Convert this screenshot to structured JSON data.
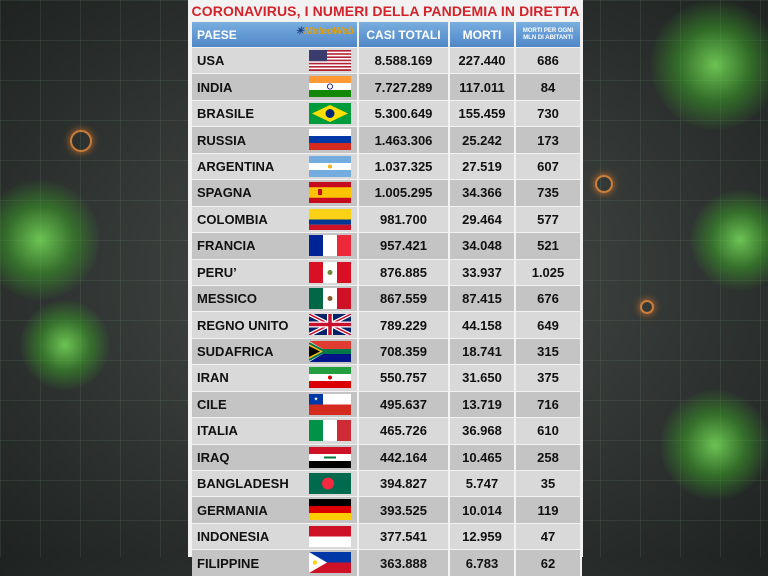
{
  "title": "CORONAVIRUS, I NUMERI DELLA PANDEMIA IN DIRETTA",
  "logo": "MeteoWeb",
  "columns": [
    "PAESE",
    "CASI TOTALI",
    "MORTI",
    "MORTI PER OGNI MLN DI ABITANTI"
  ],
  "rows": [
    {
      "country": "USA",
      "flag": "usa",
      "cases": "8.588.169",
      "deaths": "227.440",
      "rate": "686"
    },
    {
      "country": "INDIA",
      "flag": "india",
      "cases": "7.727.289",
      "deaths": "117.011",
      "rate": "84"
    },
    {
      "country": "BRASILE",
      "flag": "brazil",
      "cases": "5.300.649",
      "deaths": "155.459",
      "rate": "730"
    },
    {
      "country": "RUSSIA",
      "flag": "russia",
      "cases": "1.463.306",
      "deaths": "25.242",
      "rate": "173"
    },
    {
      "country": "ARGENTINA",
      "flag": "argentina",
      "cases": "1.037.325",
      "deaths": "27.519",
      "rate": "607"
    },
    {
      "country": "SPAGNA",
      "flag": "spain",
      "cases": "1.005.295",
      "deaths": "34.366",
      "rate": "735"
    },
    {
      "country": "COLOMBIA",
      "flag": "colombia",
      "cases": "981.700",
      "deaths": "29.464",
      "rate": "577"
    },
    {
      "country": "FRANCIA",
      "flag": "france",
      "cases": "957.421",
      "deaths": "34.048",
      "rate": "521"
    },
    {
      "country": "PERU’",
      "flag": "peru",
      "cases": "876.885",
      "deaths": "33.937",
      "rate": "1.025"
    },
    {
      "country": "MESSICO",
      "flag": "mexico",
      "cases": "867.559",
      "deaths": "87.415",
      "rate": "676"
    },
    {
      "country": "REGNO UNITO",
      "flag": "uk",
      "cases": "789.229",
      "deaths": "44.158",
      "rate": "649"
    },
    {
      "country": "SUDAFRICA",
      "flag": "southafrica",
      "cases": "708.359",
      "deaths": "18.741",
      "rate": "315"
    },
    {
      "country": "IRAN",
      "flag": "iran",
      "cases": "550.757",
      "deaths": "31.650",
      "rate": "375"
    },
    {
      "country": "CILE",
      "flag": "chile",
      "cases": "495.637",
      "deaths": "13.719",
      "rate": "716"
    },
    {
      "country": "ITALIA",
      "flag": "italy",
      "cases": "465.726",
      "deaths": "36.968",
      "rate": "610"
    },
    {
      "country": "IRAQ",
      "flag": "iraq",
      "cases": "442.164",
      "deaths": "10.465",
      "rate": "258"
    },
    {
      "country": "BANGLADESH",
      "flag": "bangladesh",
      "cases": "394.827",
      "deaths": "5.747",
      "rate": "35"
    },
    {
      "country": "GERMANIA",
      "flag": "germany",
      "cases": "393.525",
      "deaths": "10.014",
      "rate": "119"
    },
    {
      "country": "INDONESIA",
      "flag": "indonesia",
      "cases": "377.541",
      "deaths": "12.959",
      "rate": "47"
    },
    {
      "country": "FILIPPINE",
      "flag": "philippines",
      "cases": "363.888",
      "deaths": "6.783",
      "rate": "62"
    }
  ]
}
